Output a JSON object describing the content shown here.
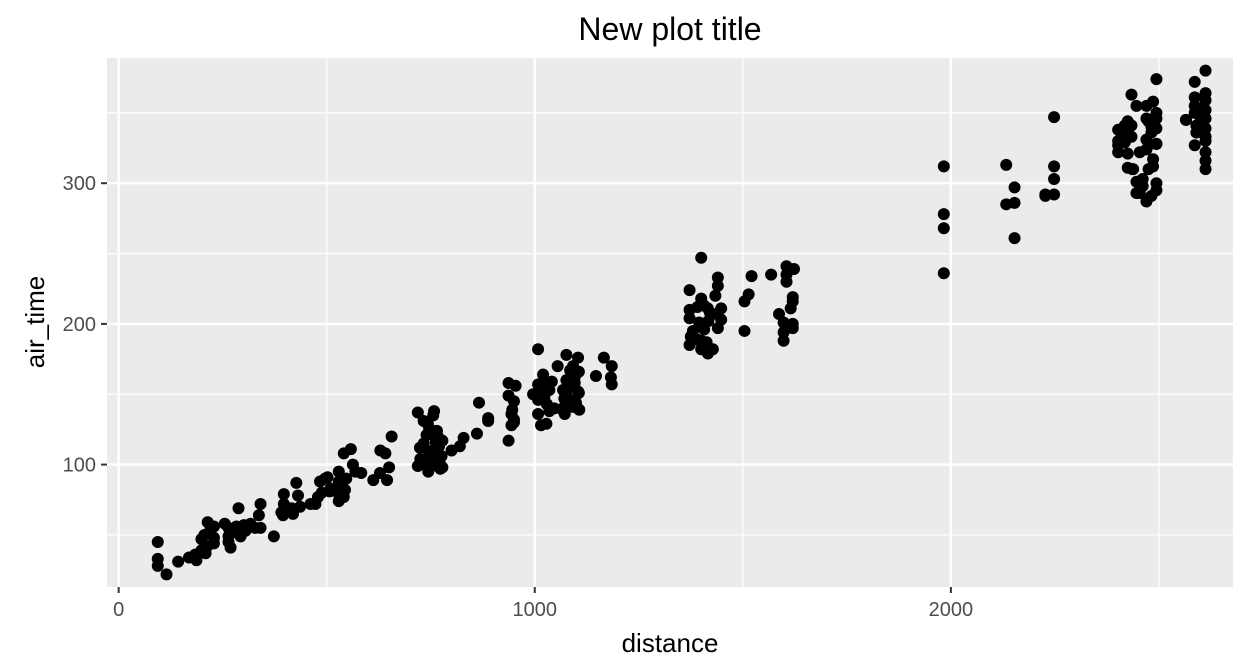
{
  "chart_data": {
    "type": "scatter",
    "title": "New plot title",
    "xlabel": "distance",
    "ylabel": "air_time",
    "xlim": [
      -28,
      2678
    ],
    "ylim": [
      13,
      389
    ],
    "x_major_ticks": [
      0,
      1000,
      2000
    ],
    "x_minor_ticks": [
      500,
      1500,
      2500
    ],
    "y_major_ticks": [
      100,
      200,
      300
    ],
    "y_minor_ticks": [
      50,
      150,
      250,
      350
    ],
    "grid": true,
    "legend": "none",
    "point_color": "#000000",
    "panel_background": "#ebebeb",
    "grid_color": "#ffffff",
    "points": [
      [
        94,
        45
      ],
      [
        94,
        33
      ],
      [
        94,
        28
      ],
      [
        115,
        22
      ],
      [
        143,
        31
      ],
      [
        169,
        34
      ],
      [
        184,
        36
      ],
      [
        187,
        32
      ],
      [
        199,
        39
      ],
      [
        199,
        47
      ],
      [
        206,
        50
      ],
      [
        209,
        37
      ],
      [
        213,
        42
      ],
      [
        214,
        59
      ],
      [
        221,
        54
      ],
      [
        229,
        44
      ],
      [
        229,
        48
      ],
      [
        229,
        56
      ],
      [
        255,
        58
      ],
      [
        264,
        55
      ],
      [
        264,
        45
      ],
      [
        264,
        49
      ],
      [
        269,
        41
      ],
      [
        280,
        52
      ],
      [
        283,
        56
      ],
      [
        288,
        69
      ],
      [
        293,
        49
      ],
      [
        301,
        57
      ],
      [
        305,
        53
      ],
      [
        317,
        58
      ],
      [
        328,
        55
      ],
      [
        337,
        64
      ],
      [
        341,
        72
      ],
      [
        341,
        55
      ],
      [
        373,
        49
      ],
      [
        391,
        66
      ],
      [
        395,
        64
      ],
      [
        397,
        72
      ],
      [
        397,
        79
      ],
      [
        404,
        68
      ],
      [
        416,
        69
      ],
      [
        419,
        65
      ],
      [
        427,
        87
      ],
      [
        431,
        78
      ],
      [
        436,
        70
      ],
      [
        461,
        72
      ],
      [
        473,
        72
      ],
      [
        479,
        77
      ],
      [
        484,
        88
      ],
      [
        488,
        80
      ],
      [
        496,
        90
      ],
      [
        502,
        91
      ],
      [
        507,
        81
      ],
      [
        509,
        83
      ],
      [
        529,
        95
      ],
      [
        529,
        79
      ],
      [
        529,
        74
      ],
      [
        529,
        88
      ],
      [
        533,
        85
      ],
      [
        541,
        108
      ],
      [
        541,
        77
      ],
      [
        544,
        82
      ],
      [
        547,
        90
      ],
      [
        558,
        111
      ],
      [
        563,
        100
      ],
      [
        569,
        95
      ],
      [
        583,
        94
      ],
      [
        612,
        89
      ],
      [
        628,
        94
      ],
      [
        629,
        110
      ],
      [
        641,
        108
      ],
      [
        645,
        89
      ],
      [
        650,
        98
      ],
      [
        656,
        120
      ],
      [
        719,
        137
      ],
      [
        719,
        99
      ],
      [
        724,
        112
      ],
      [
        725,
        104
      ],
      [
        733,
        131
      ],
      [
        733,
        115
      ],
      [
        733,
        101
      ],
      [
        738,
        104
      ],
      [
        740,
        121
      ],
      [
        743,
        129
      ],
      [
        744,
        95
      ],
      [
        746,
        126
      ],
      [
        746,
        108
      ],
      [
        748,
        98
      ],
      [
        755,
        110
      ],
      [
        756,
        135
      ],
      [
        758,
        138
      ],
      [
        762,
        116
      ],
      [
        762,
        100
      ],
      [
        762,
        110
      ],
      [
        762,
        105
      ],
      [
        765,
        124
      ],
      [
        767,
        120
      ],
      [
        770,
        113
      ],
      [
        771,
        102
      ],
      [
        773,
        97
      ],
      [
        776,
        106
      ],
      [
        778,
        117
      ],
      [
        778,
        98
      ],
      [
        800,
        110
      ],
      [
        820,
        113
      ],
      [
        829,
        119
      ],
      [
        861,
        122
      ],
      [
        866,
        144
      ],
      [
        888,
        131
      ],
      [
        888,
        133
      ],
      [
        937,
        117
      ],
      [
        937,
        158
      ],
      [
        937,
        149
      ],
      [
        944,
        128
      ],
      [
        944,
        136
      ],
      [
        946,
        139
      ],
      [
        950,
        145
      ],
      [
        950,
        132
      ],
      [
        950,
        130
      ],
      [
        954,
        156
      ],
      [
        996,
        150
      ],
      [
        1008,
        182
      ],
      [
        1008,
        157
      ],
      [
        1008,
        146
      ],
      [
        1008,
        136
      ],
      [
        1015,
        128
      ],
      [
        1017,
        150
      ],
      [
        1020,
        164
      ],
      [
        1020,
        157
      ],
      [
        1023,
        148
      ],
      [
        1028,
        129
      ],
      [
        1029,
        143
      ],
      [
        1035,
        138
      ],
      [
        1035,
        153
      ],
      [
        1041,
        159
      ],
      [
        1047,
        140
      ],
      [
        1055,
        170
      ],
      [
        1068,
        153
      ],
      [
        1069,
        138
      ],
      [
        1071,
        147
      ],
      [
        1071,
        141
      ],
      [
        1072,
        136
      ],
      [
        1076,
        160
      ],
      [
        1076,
        149
      ],
      [
        1076,
        178
      ],
      [
        1076,
        152
      ],
      [
        1085,
        167
      ],
      [
        1089,
        156
      ],
      [
        1092,
        141
      ],
      [
        1092,
        170
      ],
      [
        1096,
        162
      ],
      [
        1096,
        146
      ],
      [
        1096,
        158
      ],
      [
        1099,
        144
      ],
      [
        1104,
        152
      ],
      [
        1104,
        176
      ],
      [
        1106,
        151
      ],
      [
        1106,
        166
      ],
      [
        1107,
        139
      ],
      [
        1147,
        163
      ],
      [
        1166,
        176
      ],
      [
        1183,
        162
      ],
      [
        1185,
        157
      ],
      [
        1185,
        170
      ],
      [
        1372,
        224
      ],
      [
        1372,
        210
      ],
      [
        1372,
        204
      ],
      [
        1372,
        185
      ],
      [
        1375,
        191
      ],
      [
        1380,
        195
      ],
      [
        1389,
        189
      ],
      [
        1391,
        212
      ],
      [
        1395,
        201
      ],
      [
        1400,
        247
      ],
      [
        1400,
        188
      ],
      [
        1400,
        182
      ],
      [
        1400,
        218
      ],
      [
        1407,
        213
      ],
      [
        1407,
        196
      ],
      [
        1413,
        187
      ],
      [
        1416,
        179
      ],
      [
        1416,
        211
      ],
      [
        1417,
        202
      ],
      [
        1421,
        208
      ],
      [
        1428,
        182
      ],
      [
        1434,
        220
      ],
      [
        1437,
        207
      ],
      [
        1440,
        197
      ],
      [
        1440,
        233
      ],
      [
        1440,
        227
      ],
      [
        1448,
        211
      ],
      [
        1448,
        203
      ],
      [
        1504,
        195
      ],
      [
        1504,
        216
      ],
      [
        1514,
        221
      ],
      [
        1521,
        234
      ],
      [
        1568,
        235
      ],
      [
        1587,
        207
      ],
      [
        1598,
        201
      ],
      [
        1598,
        194
      ],
      [
        1598,
        188
      ],
      [
        1602,
        199
      ],
      [
        1605,
        241
      ],
      [
        1605,
        235
      ],
      [
        1605,
        230
      ],
      [
        1615,
        211
      ],
      [
        1620,
        197
      ],
      [
        1620,
        216
      ],
      [
        1620,
        219
      ],
      [
        1620,
        200
      ],
      [
        1623,
        239
      ],
      [
        1983,
        236
      ],
      [
        1983,
        268
      ],
      [
        1983,
        278
      ],
      [
        1983,
        312
      ],
      [
        2133,
        313
      ],
      [
        2133,
        285
      ],
      [
        2153,
        286
      ],
      [
        2153,
        261
      ],
      [
        2153,
        297
      ],
      [
        2227,
        292
      ],
      [
        2227,
        291
      ],
      [
        2248,
        347
      ],
      [
        2248,
        312
      ],
      [
        2248,
        303
      ],
      [
        2248,
        292
      ],
      [
        2402,
        322
      ],
      [
        2402,
        330
      ],
      [
        2402,
        338
      ],
      [
        2402,
        327
      ],
      [
        2418,
        341
      ],
      [
        2418,
        335
      ],
      [
        2418,
        329
      ],
      [
        2425,
        321
      ],
      [
        2425,
        344
      ],
      [
        2425,
        311
      ],
      [
        2434,
        363
      ],
      [
        2434,
        341
      ],
      [
        2434,
        333
      ],
      [
        2436,
        310
      ],
      [
        2438,
        310
      ],
      [
        2446,
        355
      ],
      [
        2446,
        301
      ],
      [
        2446,
        293
      ],
      [
        2454,
        322
      ],
      [
        2454,
        293
      ],
      [
        2461,
        303
      ],
      [
        2461,
        298
      ],
      [
        2470,
        287
      ],
      [
        2470,
        324
      ],
      [
        2470,
        331
      ],
      [
        2470,
        346
      ],
      [
        2470,
        355
      ],
      [
        2475,
        344
      ],
      [
        2475,
        327
      ],
      [
        2475,
        310
      ],
      [
        2482,
        291
      ],
      [
        2482,
        340
      ],
      [
        2482,
        336
      ],
      [
        2486,
        312
      ],
      [
        2486,
        358
      ],
      [
        2486,
        317
      ],
      [
        2494,
        374
      ],
      [
        2494,
        328
      ],
      [
        2494,
        300
      ],
      [
        2494,
        295
      ],
      [
        2494,
        346
      ],
      [
        2494,
        350
      ],
      [
        2494,
        339
      ],
      [
        2494,
        328
      ],
      [
        2565,
        345
      ],
      [
        2565,
        345
      ],
      [
        2586,
        350
      ],
      [
        2586,
        327
      ],
      [
        2586,
        361
      ],
      [
        2586,
        372
      ],
      [
        2586,
        355
      ],
      [
        2590,
        341
      ],
      [
        2590,
        336
      ],
      [
        2600,
        343
      ],
      [
        2600,
        353
      ],
      [
        2600,
        347
      ],
      [
        2612,
        359
      ],
      [
        2612,
        380
      ],
      [
        2612,
        364
      ],
      [
        2612,
        352
      ],
      [
        2612,
        339
      ],
      [
        2612,
        330
      ],
      [
        2612,
        316
      ],
      [
        2612,
        310
      ],
      [
        2612,
        322
      ],
      [
        2612,
        346
      ],
      [
        2612,
        333
      ]
    ]
  }
}
